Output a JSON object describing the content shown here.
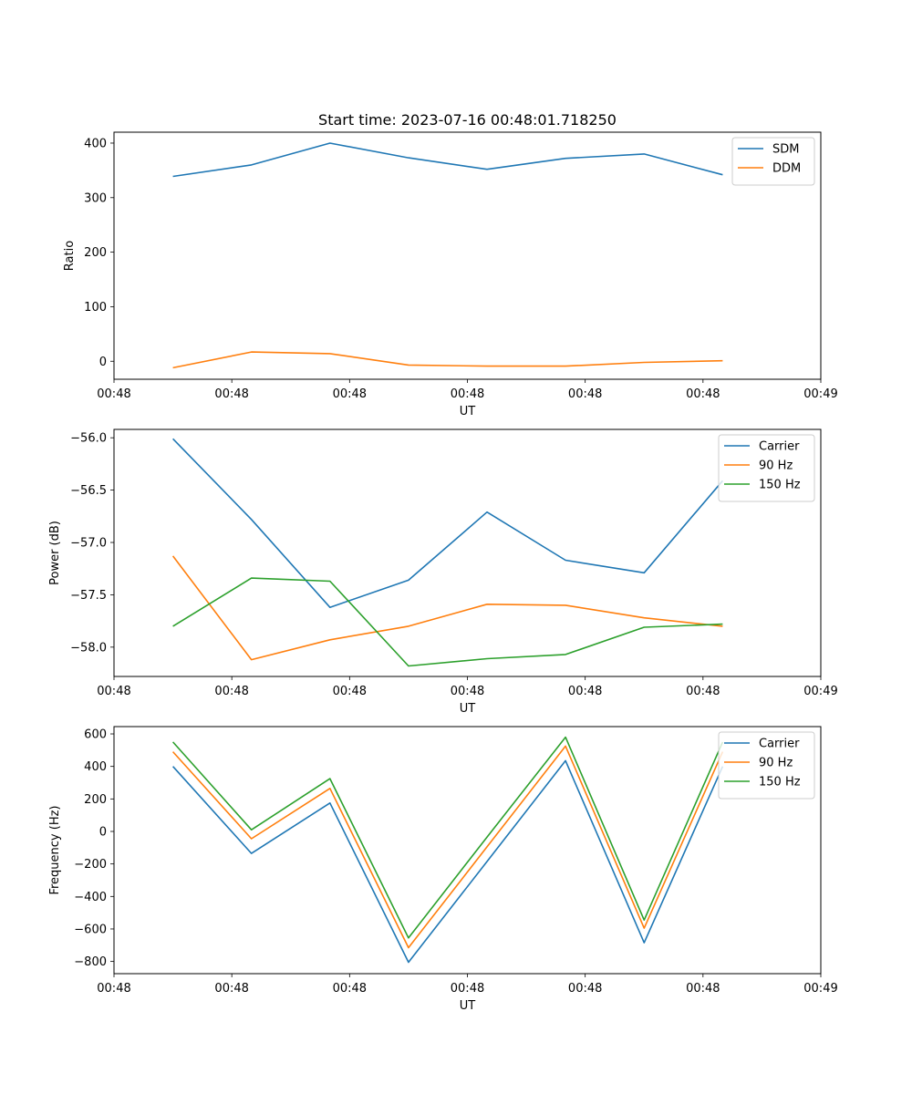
{
  "chart_data": [
    {
      "type": "line",
      "title": "Start time: 2023-07-16 00:48:01.718250",
      "xlabel": "UT",
      "ylabel": "Ratio",
      "x": [
        1,
        2,
        3,
        4,
        5,
        6,
        7,
        8
      ],
      "xlim": [
        0.25,
        9.25
      ],
      "x_ticks": [
        0.25,
        1.75,
        3.25,
        4.75,
        6.25,
        7.75,
        9.25
      ],
      "x_tick_labels": [
        "00:48",
        "00:48",
        "00:48",
        "00:48",
        "00:48",
        "00:48",
        "00:49"
      ],
      "ylim": [
        -33,
        420
      ],
      "y_ticks": [
        0,
        100,
        200,
        300,
        400
      ],
      "y_tick_labels": [
        "0",
        "100",
        "200",
        "300",
        "400"
      ],
      "legend_position": "top-right",
      "series": [
        {
          "name": "SDM",
          "color": "#1f77b4",
          "values": [
            339,
            360,
            400,
            373,
            352,
            372,
            380,
            342
          ]
        },
        {
          "name": "DDM",
          "color": "#ff7f0e",
          "values": [
            -12,
            17,
            14,
            -7,
            -9,
            -9,
            -2,
            1
          ]
        }
      ]
    },
    {
      "type": "line",
      "title": "",
      "xlabel": "UT",
      "ylabel": "Power (dB)",
      "x": [
        1,
        2,
        3,
        4,
        5,
        6,
        7,
        8
      ],
      "xlim": [
        0.25,
        9.25
      ],
      "x_ticks": [
        0.25,
        1.75,
        3.25,
        4.75,
        6.25,
        7.75,
        9.25
      ],
      "x_tick_labels": [
        "00:48",
        "00:48",
        "00:48",
        "00:48",
        "00:48",
        "00:48",
        "00:49"
      ],
      "ylim": [
        -58.28,
        -55.92
      ],
      "y_ticks": [
        -56.0,
        -56.5,
        -57.0,
        -57.5,
        -58.0
      ],
      "y_tick_labels": [
        "−56.0",
        "−56.5",
        "−57.0",
        "−57.5",
        "−58.0"
      ],
      "legend_position": "top-right",
      "series": [
        {
          "name": "Carrier",
          "color": "#1f77b4",
          "values": [
            -56.01,
            -56.78,
            -57.62,
            -57.36,
            -56.71,
            -57.17,
            -57.29,
            -56.41
          ]
        },
        {
          "name": "90 Hz",
          "color": "#ff7f0e",
          "values": [
            -57.13,
            -58.12,
            -57.93,
            -57.8,
            -57.59,
            -57.6,
            -57.72,
            -57.8
          ]
        },
        {
          "name": "150 Hz",
          "color": "#2ca02c",
          "values": [
            -57.8,
            -57.34,
            -57.37,
            -58.18,
            -58.11,
            -58.07,
            -57.81,
            -57.78
          ]
        }
      ]
    },
    {
      "type": "line",
      "title": "",
      "xlabel": "UT",
      "ylabel": "Frequency (Hz)",
      "x": [
        1,
        2,
        3,
        4,
        5,
        6,
        7,
        8
      ],
      "xlim": [
        0.25,
        9.25
      ],
      "x_ticks": [
        0.25,
        1.75,
        3.25,
        4.75,
        6.25,
        7.75,
        9.25
      ],
      "x_tick_labels": [
        "00:48",
        "00:48",
        "00:48",
        "00:48",
        "00:48",
        "00:48",
        "00:49"
      ],
      "ylim": [
        -875,
        645
      ],
      "y_ticks": [
        600,
        400,
        200,
        0,
        -200,
        -400,
        -600,
        -800
      ],
      "y_tick_labels": [
        "600",
        "400",
        "200",
        "0",
        "−200",
        "−400",
        "−600",
        "−800"
      ],
      "legend_position": "top-right",
      "series": [
        {
          "name": "Carrier",
          "color": "#1f77b4",
          "values": [
            400,
            -135,
            175,
            -805,
            -185,
            435,
            -685,
            400
          ]
        },
        {
          "name": "90 Hz",
          "color": "#ff7f0e",
          "values": [
            490,
            -45,
            265,
            -715,
            -95,
            525,
            -595,
            490
          ]
        },
        {
          "name": "150 Hz",
          "color": "#2ca02c",
          "values": [
            550,
            10,
            325,
            -655,
            -35,
            580,
            -545,
            550
          ]
        }
      ]
    }
  ]
}
